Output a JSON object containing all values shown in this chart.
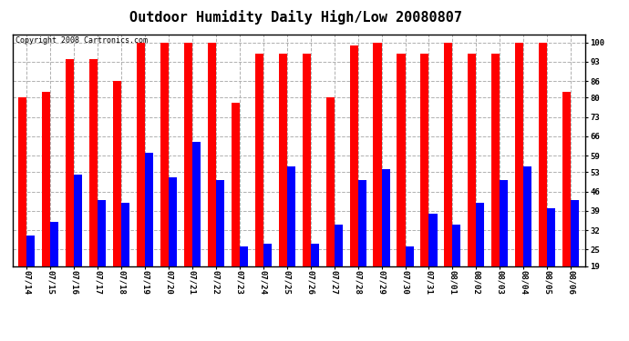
{
  "title": "Outdoor Humidity Daily High/Low 20080807",
  "copyright_text": "Copyright 2008 Cartronics.com",
  "categories": [
    "07/14",
    "07/15",
    "07/16",
    "07/17",
    "07/18",
    "07/19",
    "07/20",
    "07/21",
    "07/22",
    "07/23",
    "07/24",
    "07/25",
    "07/26",
    "07/27",
    "07/28",
    "07/29",
    "07/30",
    "07/31",
    "08/01",
    "08/02",
    "08/03",
    "08/04",
    "08/05",
    "08/06"
  ],
  "highs": [
    80,
    82,
    94,
    94,
    86,
    100,
    100,
    100,
    100,
    78,
    96,
    96,
    96,
    80,
    99,
    100,
    96,
    96,
    100,
    96,
    96,
    100,
    100,
    82
  ],
  "lows": [
    30,
    35,
    52,
    43,
    42,
    60,
    51,
    64,
    50,
    26,
    27,
    55,
    27,
    34,
    50,
    54,
    26,
    38,
    34,
    42,
    50,
    55,
    40,
    43
  ],
  "high_color": "#ff0000",
  "low_color": "#0000ff",
  "bg_color": "#ffffff",
  "grid_color": "#b0b0b0",
  "yticks": [
    19,
    25,
    32,
    39,
    46,
    53,
    59,
    66,
    73,
    80,
    86,
    93,
    100
  ],
  "ymin": 19,
  "ymax": 103,
  "bar_width": 0.35,
  "title_fontsize": 11,
  "tick_fontsize": 6.5,
  "copyright_fontsize": 6
}
